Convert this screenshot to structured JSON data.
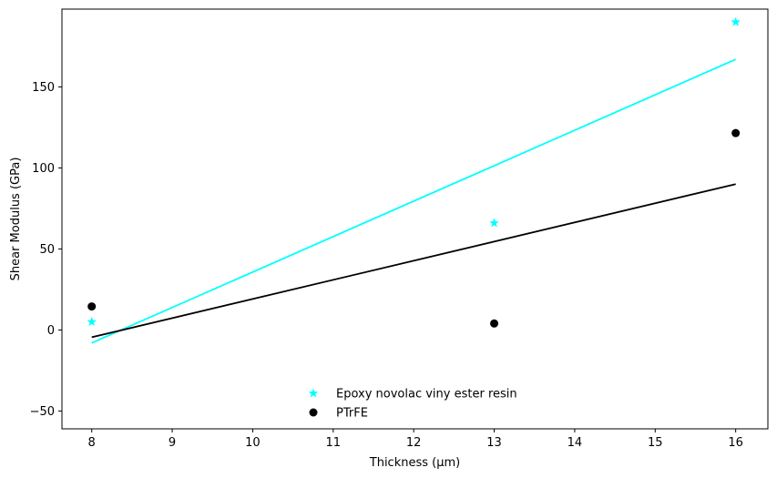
{
  "chart_data": {
    "type": "scatter",
    "title": "",
    "xlabel": "Thickness (μm)",
    "ylabel": "Shear Modulus (GPa)",
    "xlim": [
      7.63,
      16.4
    ],
    "ylim": [
      -61,
      198
    ],
    "xticks": [
      8,
      9,
      10,
      11,
      12,
      13,
      14,
      15,
      16
    ],
    "yticks": [
      -50,
      0,
      50,
      100,
      150
    ],
    "grid": false,
    "legend_position": "bottom-center",
    "series": [
      {
        "name": "Epoxy novolac viny ester resin",
        "marker": "star",
        "color": "#00ffff",
        "x": [
          8,
          13,
          16
        ],
        "y": [
          5,
          66,
          190
        ],
        "fit_line": {
          "x": [
            8,
            16
          ],
          "y": [
            -8,
            167
          ]
        }
      },
      {
        "name": "PTrFE",
        "marker": "circle",
        "color": "#000000",
        "x": [
          8,
          13,
          16
        ],
        "y": [
          14.5,
          4,
          121.5
        ],
        "fit_line": {
          "x": [
            8,
            16
          ],
          "y": [
            -4.5,
            90
          ]
        }
      }
    ]
  }
}
